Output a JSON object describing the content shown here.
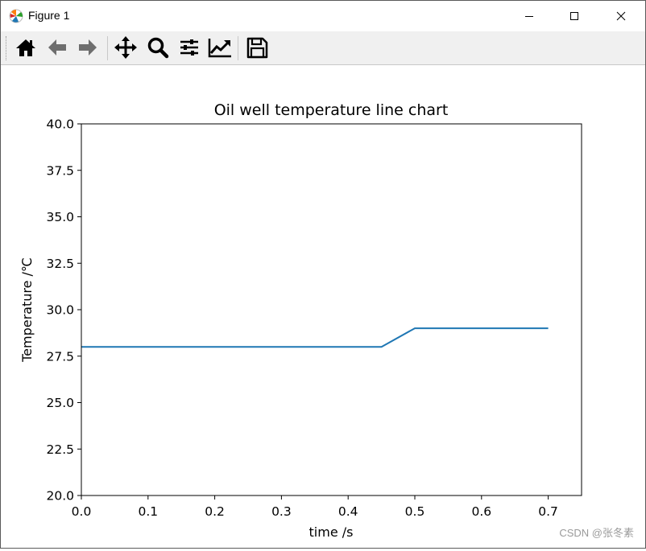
{
  "window": {
    "title": "Figure 1",
    "minimize_icon": "minimize-icon",
    "maximize_icon": "maximize-icon",
    "close_icon": "close-icon"
  },
  "toolbar": {
    "buttons": [
      {
        "name": "home",
        "icon": "home-icon"
      },
      {
        "name": "back",
        "icon": "arrow-left-icon"
      },
      {
        "name": "forward",
        "icon": "arrow-right-icon"
      },
      {
        "name": "pan",
        "icon": "move-icon"
      },
      {
        "name": "zoom",
        "icon": "magnifier-icon"
      },
      {
        "name": "configure-subplots",
        "icon": "sliders-icon"
      },
      {
        "name": "edit-axis",
        "icon": "line-chart-icon"
      },
      {
        "name": "save",
        "icon": "floppy-disk-icon"
      }
    ]
  },
  "chart_data": {
    "type": "line",
    "title": "Oil well temperature line chart",
    "xlabel": "time /s",
    "ylabel": "Temperature /℃",
    "xlim": [
      0.0,
      0.75
    ],
    "ylim": [
      20.0,
      40.0
    ],
    "xticks": [
      "0.0",
      "0.1",
      "0.2",
      "0.3",
      "0.4",
      "0.5",
      "0.6",
      "0.7"
    ],
    "yticks": [
      "20.0",
      "22.5",
      "25.0",
      "27.5",
      "30.0",
      "32.5",
      "35.0",
      "37.5",
      "40.0"
    ],
    "grid": false,
    "series": [
      {
        "color": "#1f77b4",
        "x": [
          0.0,
          0.05,
          0.1,
          0.15,
          0.2,
          0.25,
          0.3,
          0.35,
          0.4,
          0.45,
          0.5,
          0.55,
          0.6,
          0.65,
          0.7
        ],
        "y": [
          28,
          28,
          28,
          28,
          28,
          28,
          28,
          28,
          28,
          28,
          29,
          29,
          29,
          29,
          29
        ]
      }
    ]
  },
  "watermark": "CSDN @张冬素"
}
